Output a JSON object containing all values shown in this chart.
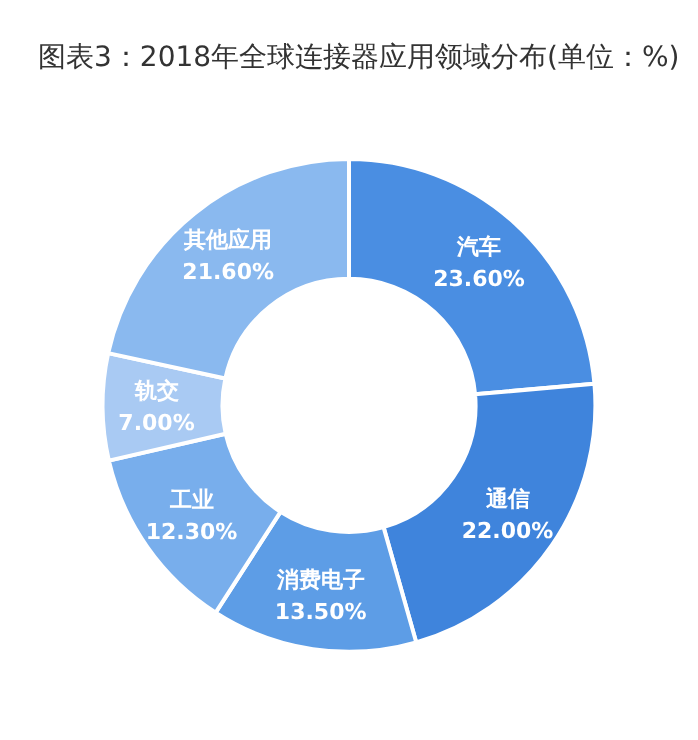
{
  "chart_data": {
    "type": "donut",
    "title": "图表3：2018年全球连接器应用领域分布(单位：%)",
    "categories": [
      "汽车",
      "通信",
      "消费电子",
      "工业",
      "轨交",
      "其他应用"
    ],
    "values": [
      23.6,
      22.0,
      13.5,
      12.3,
      7.0,
      21.6
    ],
    "value_labels": [
      "23.60%",
      "22.00%",
      "13.50%",
      "12.30%",
      "7.00%",
      "21.60%"
    ],
    "colors": [
      "#4a8ee2",
      "#3f84dc",
      "#5d9de6",
      "#78aeec",
      "#a9caf3",
      "#8ab9ef"
    ],
    "legend": false
  }
}
